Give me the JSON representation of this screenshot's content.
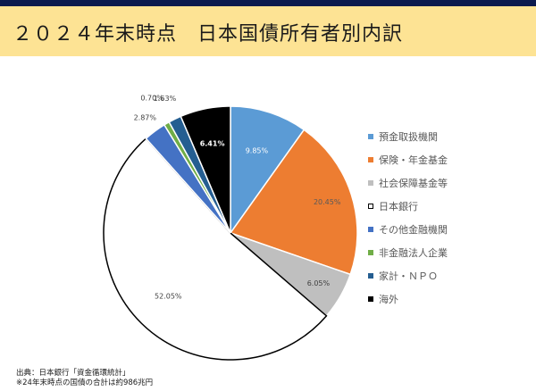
{
  "slide": {
    "title": "２０２４年末時点　日本国債所有者別内訳",
    "footer_lines": [
      "出典：日本銀行「資金循環統計」",
      "※24年末時点の国債の合計は約986兆円"
    ]
  },
  "colors": {
    "title_band": "#fde394",
    "top_bar": "#0b1a4e"
  },
  "chart_data": {
    "type": "pie",
    "start_angle_deg": 0,
    "direction": "clockwise",
    "slices": [
      {
        "name": "預金取扱機関",
        "value": 9.85,
        "label": "9.85%",
        "color": "#5b9bd5",
        "outline": false
      },
      {
        "name": "保険・年金基金",
        "value": 20.45,
        "label": "20.45%",
        "color": "#ed7d31",
        "outline": false
      },
      {
        "name": "社会保障基金等",
        "value": 6.05,
        "label": "6.05%",
        "color": "#bfbfbf",
        "outline": false
      },
      {
        "name": "日本銀行",
        "value": 52.05,
        "label": "52.05%",
        "color": "#ffffff",
        "outline": true
      },
      {
        "name": "その他金融機関",
        "value": 2.87,
        "label": "2.87%",
        "color": "#4472c4",
        "outline": false
      },
      {
        "name": "非金融法人企業",
        "value": 0.7,
        "label": "0.70%",
        "color": "#70ad47",
        "outline": false
      },
      {
        "name": "家計・ＮＰＯ",
        "value": 1.63,
        "label": "1.63%",
        "color": "#255e91",
        "outline": false
      },
      {
        "name": "海外",
        "value": 6.41,
        "label": "6.41%",
        "color": "#000000",
        "outline": false
      }
    ],
    "legend_position": "right"
  }
}
